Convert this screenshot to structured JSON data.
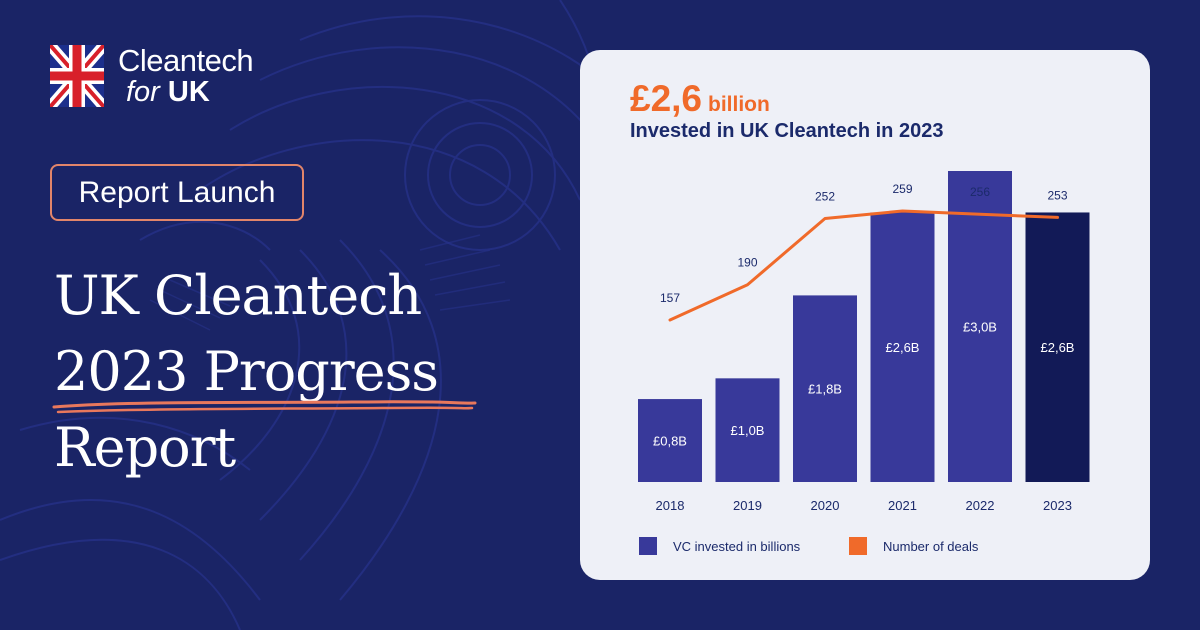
{
  "brand": {
    "name_line1": "Cleantech",
    "name_for": "for",
    "name_uk": "UK"
  },
  "badge": "Report Launch",
  "headline": [
    "UK Cleantech",
    "2023 Progress",
    "Report"
  ],
  "card": {
    "big_number": "£2,6",
    "big_unit": "billion",
    "title": "Invested in UK Cleantech in 2023"
  },
  "colors": {
    "background": "#1a2466",
    "bar": "#38399a",
    "bar_highlight": "#121a57",
    "line": "#f06a2a",
    "accent_border": "#e2856a"
  },
  "chart_data": {
    "type": "bar",
    "categories": [
      "2018",
      "2019",
      "2020",
      "2021",
      "2022",
      "2023"
    ],
    "series": [
      {
        "name": "VC invested in billions",
        "type": "bar",
        "values": [
          0.8,
          1.0,
          1.8,
          2.6,
          3.0,
          2.6
        ],
        "labels": [
          "£0,8B",
          "£1,0B",
          "£1,8B",
          "£2,6B",
          "£3,0B",
          "£2,6B"
        ]
      },
      {
        "name": "Number of deals",
        "type": "line",
        "values": [
          157,
          190,
          252,
          259,
          256,
          253
        ],
        "labels": [
          "157",
          "190",
          "252",
          "259",
          "256",
          "253"
        ]
      }
    ],
    "highlight_category": "2023",
    "bar_ylim": [
      0,
      3.0
    ],
    "line_ylim": [
      100,
      259
    ],
    "grid": false,
    "legend_position": "bottom-left"
  }
}
